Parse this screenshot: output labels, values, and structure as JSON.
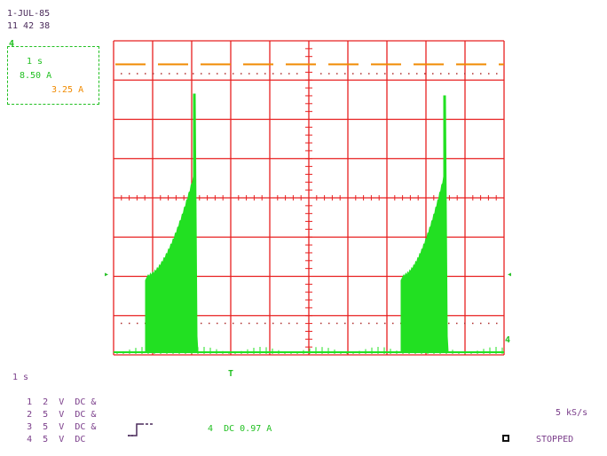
{
  "header": {
    "date": "1-JUL-85",
    "time": "11 42 38"
  },
  "cal_box": {
    "marker": "4",
    "time_div": "1 s",
    "ch_value": "8.50 A",
    "cursor_value": "3.25 A"
  },
  "channels": {
    "timebase": "1 s",
    "rows": [
      {
        "num": "1",
        "volts": "2",
        "unit": "V",
        "coupling": "DC",
        "mark": "&"
      },
      {
        "num": "2",
        "volts": "5",
        "unit": "V",
        "coupling": "DC",
        "mark": "&"
      },
      {
        "num": "3",
        "volts": "5",
        "unit": "V",
        "coupling": "DC",
        "mark": "&"
      },
      {
        "num": "4",
        "volts": "5",
        "unit": "V",
        "coupling": "DC",
        "mark": ""
      }
    ]
  },
  "trigger": {
    "channel": "4",
    "coupling": "DC",
    "level": "0.97 A"
  },
  "sample_rate": "5 kS/s",
  "status": "STOPPED",
  "markers": {
    "ch4_level": "4",
    "trigger_marker": "T"
  },
  "colors": {
    "grid": "#e82020",
    "trace": "#22e022",
    "cursor": "#f08a00"
  }
}
